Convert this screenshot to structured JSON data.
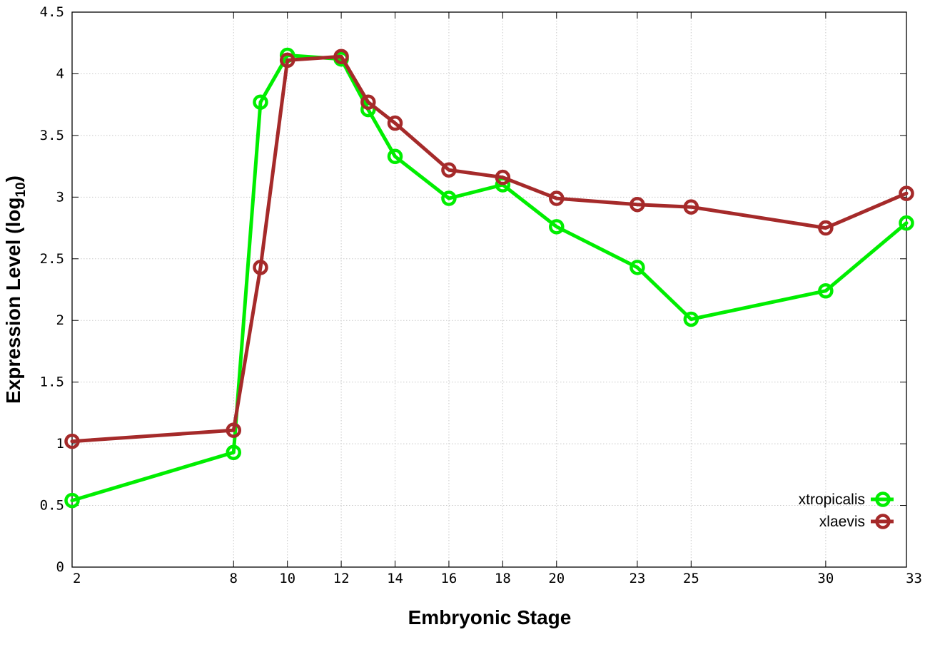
{
  "chart_data": {
    "type": "line",
    "xlabel": "Embryonic Stage",
    "ylabel_main": "Expression Level (log",
    "ylabel_sub": "10",
    "ylabel_end": ")",
    "x": [
      2,
      8,
      9,
      10,
      12,
      13,
      14,
      16,
      18,
      20,
      23,
      25,
      30,
      33
    ],
    "xticks": [
      2,
      8,
      10,
      12,
      14,
      16,
      18,
      20,
      23,
      25,
      30,
      33
    ],
    "xtick_labels": [
      "2",
      "8",
      "10",
      "12",
      "14",
      "16",
      "18",
      "20",
      "23",
      "25",
      "30",
      "33"
    ],
    "yticks": [
      0,
      0.5,
      1,
      1.5,
      2,
      2.5,
      3,
      3.5,
      4,
      4.5
    ],
    "ytick_labels": [
      "0",
      "0.5",
      "1",
      "1.5",
      "2",
      "2.5",
      "3",
      "3.5",
      "4",
      "4.5"
    ],
    "xlim": [
      2,
      33
    ],
    "ylim": [
      0,
      4.5
    ],
    "grid": true,
    "legend_position": "bottom-right",
    "series": [
      {
        "name": "xtropicalis",
        "color": "#00ee00",
        "values": [
          0.54,
          0.93,
          3.77,
          4.15,
          4.12,
          3.71,
          3.33,
          2.99,
          3.1,
          2.76,
          2.43,
          2.01,
          2.24,
          2.79
        ]
      },
      {
        "name": "xlaevis",
        "color": "#a52a2a",
        "values": [
          1.02,
          1.11,
          2.43,
          4.11,
          4.14,
          3.77,
          3.6,
          3.22,
          3.16,
          2.99,
          2.94,
          2.92,
          2.75,
          3.03
        ]
      }
    ]
  }
}
